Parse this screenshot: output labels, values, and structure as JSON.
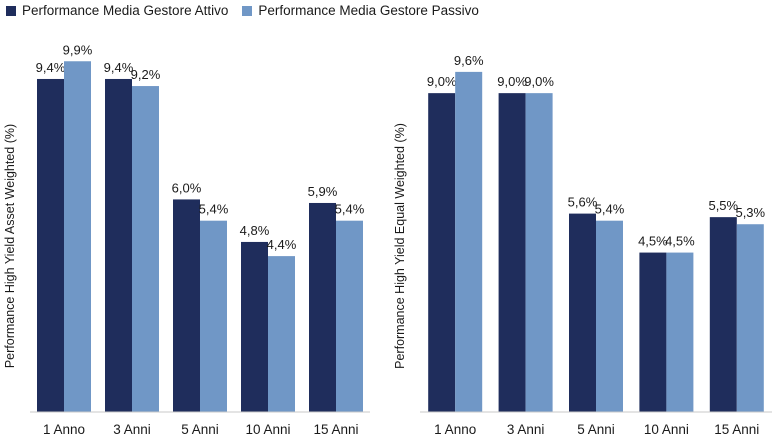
{
  "legend": {
    "items": [
      {
        "label": "Performance Media Gestore Attivo",
        "color": "#1f2d5c"
      },
      {
        "label": "Performance Media Gestore Passivo",
        "color": "#7097c6"
      }
    ]
  },
  "chart_data": [
    {
      "type": "bar",
      "title": "",
      "xlabel": "",
      "ylabel": "Performance High Yield Asset Weighted (%)",
      "ylim": [
        0,
        10.5
      ],
      "grid": false,
      "categories": [
        "1 Anno",
        "3 Anni",
        "5 Anni",
        "10 Anni",
        "15 Anni"
      ],
      "series": [
        {
          "name": "Performance Media Gestore Attivo",
          "color": "#1f2d5c",
          "values": [
            9.4,
            9.4,
            6.0,
            4.8,
            5.9
          ],
          "labels": [
            "9,4%",
            "9,4%",
            "6,0%",
            "4,8%",
            "5,9%"
          ]
        },
        {
          "name": "Performance Media Gestore Passivo",
          "color": "#7097c6",
          "values": [
            9.9,
            9.2,
            5.4,
            4.4,
            5.4
          ],
          "labels": [
            "9,9%",
            "9,2%",
            "5,4%",
            "4,4%",
            "5,4%"
          ]
        }
      ]
    },
    {
      "type": "bar",
      "title": "",
      "xlabel": "",
      "ylabel": "Performance High Yield Equal Weighted (%)",
      "ylim": [
        0,
        10.5
      ],
      "grid": false,
      "categories": [
        "1 Anno",
        "3 Anni",
        "5 Anni",
        "10 Anni",
        "15 Anni"
      ],
      "series": [
        {
          "name": "Performance Media Gestore Attivo",
          "color": "#1f2d5c",
          "values": [
            9.0,
            9.0,
            5.6,
            4.5,
            5.5
          ],
          "labels": [
            "9,0%",
            "9,0%",
            "5,6%",
            "4,5%",
            "5,5%"
          ]
        },
        {
          "name": "Performance Media Gestore Passivo",
          "color": "#7097c6",
          "values": [
            9.6,
            9.0,
            5.4,
            4.5,
            5.3
          ],
          "labels": [
            "9,6%",
            "9,0%",
            "5,4%",
            "4,5%",
            "5,3%"
          ]
        }
      ]
    }
  ]
}
